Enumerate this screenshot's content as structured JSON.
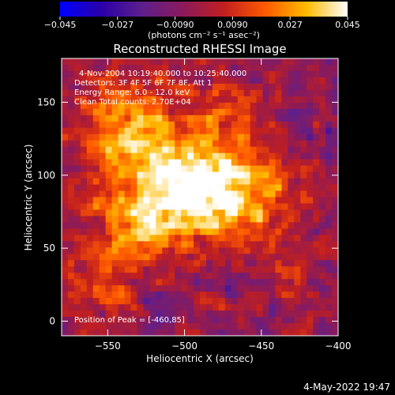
{
  "chart_data": {
    "type": "heatmap",
    "title": "Reconstructed RHESSI Image",
    "xlabel": "Heliocentric X (arcsec)",
    "ylabel": "Heliocentric Y (arcsec)",
    "x_range": [
      -580,
      -400
    ],
    "y_range": [
      -10,
      180
    ],
    "x_ticks": [
      -550,
      -500,
      -450,
      -400
    ],
    "y_ticks": [
      0,
      50,
      100,
      150
    ],
    "colorbar": {
      "range": [
        -0.045,
        0.045
      ],
      "ticks": [
        "−0.045",
        "−0.027",
        "−0.0090",
        "0.0090",
        "0.027",
        "0.045"
      ],
      "units_label": "(photons cm⁻² s⁻¹ asec⁻²)",
      "stops": [
        "#0000ff",
        "#2a00a8",
        "#5e1f8c",
        "#8b1a5a",
        "#c21f1f",
        "#ff5a00",
        "#ffbb00",
        "#ffffff"
      ]
    },
    "annotations": [
      "4-Nov-2004 10:19:40.000 to 10:25:40.000",
      "Detectors: 3F 4F 5F 6F 7F 8F, Att 1",
      "Energy Range: 6.0 - 12.0 keV",
      "Clean    Total counts: 2.70E+04"
    ],
    "peak_label": "Position of Peak = [-460,85]",
    "peak_position": [
      -460,
      85
    ],
    "emission_blobs": [
      {
        "x": -510,
        "y": 100,
        "sx": 30,
        "sy": 28,
        "amp": 0.038
      },
      {
        "x": -470,
        "y": 88,
        "sx": 26,
        "sy": 22,
        "amp": 0.04
      },
      {
        "x": -540,
        "y": 140,
        "sx": 22,
        "sy": 26,
        "amp": 0.026
      },
      {
        "x": -530,
        "y": 60,
        "sx": 24,
        "sy": 18,
        "amp": 0.022
      },
      {
        "x": -560,
        "y": 20,
        "sx": 16,
        "sy": 22,
        "amp": 0.016
      },
      {
        "x": -430,
        "y": 30,
        "sx": 18,
        "sy": 16,
        "amp": 0.012
      },
      {
        "x": -470,
        "y": 150,
        "sx": 18,
        "sy": 14,
        "amp": 0.012
      }
    ]
  },
  "footer": {
    "date": "4-May-2022 19:47"
  }
}
